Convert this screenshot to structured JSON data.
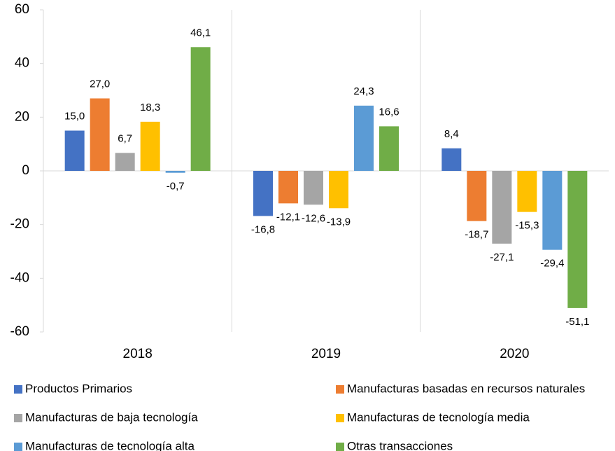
{
  "chart_data": {
    "type": "bar",
    "categories": [
      "2018",
      "2019",
      "2020"
    ],
    "series": [
      {
        "name": "Productos Primarios",
        "color": "#4472c4",
        "values": [
          15.0,
          -16.8,
          8.4
        ],
        "value_labels": [
          "15,0",
          "-16,8",
          "8,4"
        ]
      },
      {
        "name": "Manufacturas basadas en recursos naturales",
        "color": "#ed7d31",
        "values": [
          27.0,
          -12.1,
          -18.7
        ],
        "value_labels": [
          "27,0",
          "-12,1",
          "-18,7"
        ]
      },
      {
        "name": "Manufacturas de baja tecnología",
        "color": "#a5a5a5",
        "values": [
          6.7,
          -12.6,
          -27.1
        ],
        "value_labels": [
          "6,7",
          "-12,6",
          "-27,1"
        ]
      },
      {
        "name": "Manufacturas de tecnología media",
        "color": "#ffc000",
        "values": [
          18.3,
          -13.9,
          -15.3
        ],
        "value_labels": [
          "18,3",
          "-13,9",
          "-15,3"
        ]
      },
      {
        "name": "Manufacturas de tecnología alta",
        "color": "#5b9bd5",
        "values": [
          -0.7,
          24.3,
          -29.4
        ],
        "value_labels": [
          "-0,7",
          "24,3",
          "-29,4"
        ]
      },
      {
        "name": "Otras transacciones",
        "color": "#70ad47",
        "values": [
          46.1,
          16.6,
          -51.1
        ],
        "value_labels": [
          "46,1",
          "16,6",
          "-51,1"
        ]
      }
    ],
    "ylim": [
      -60,
      60
    ],
    "yticks": [
      -60,
      -40,
      -20,
      0,
      20,
      40,
      60
    ],
    "legend": "bottom"
  }
}
